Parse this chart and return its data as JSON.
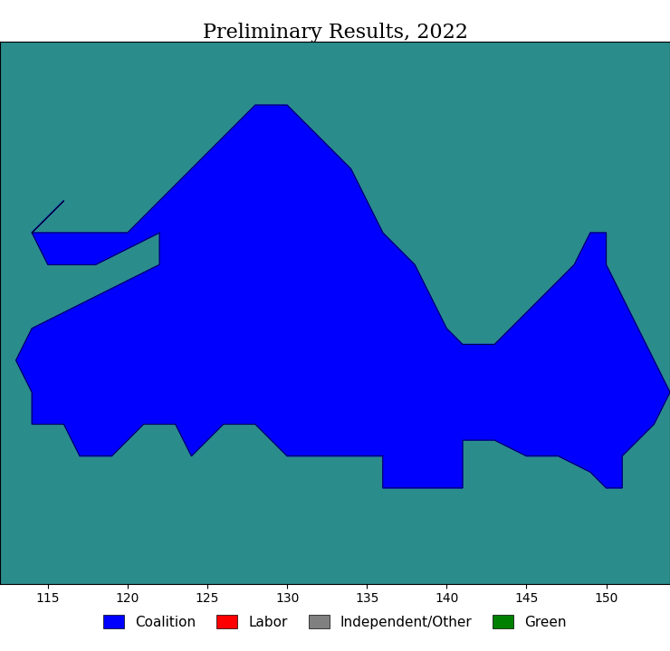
{
  "title": "Preliminary Results, 2022",
  "title_fontsize": 16,
  "background_color": "#2E8B8B",
  "map_background": "#2E8B8B",
  "ocean_color": "#1F8B8B",
  "colors": {
    "Coalition": "#0000FF",
    "Labor": "#FF0000",
    "Independent": "#808080",
    "Green": "#008000"
  },
  "legend_labels": [
    "Coalition",
    "Labor",
    "Independent/Other",
    "Green"
  ],
  "legend_colors": [
    "#0000FF",
    "#FF0000",
    "#808080",
    "#008000"
  ]
}
